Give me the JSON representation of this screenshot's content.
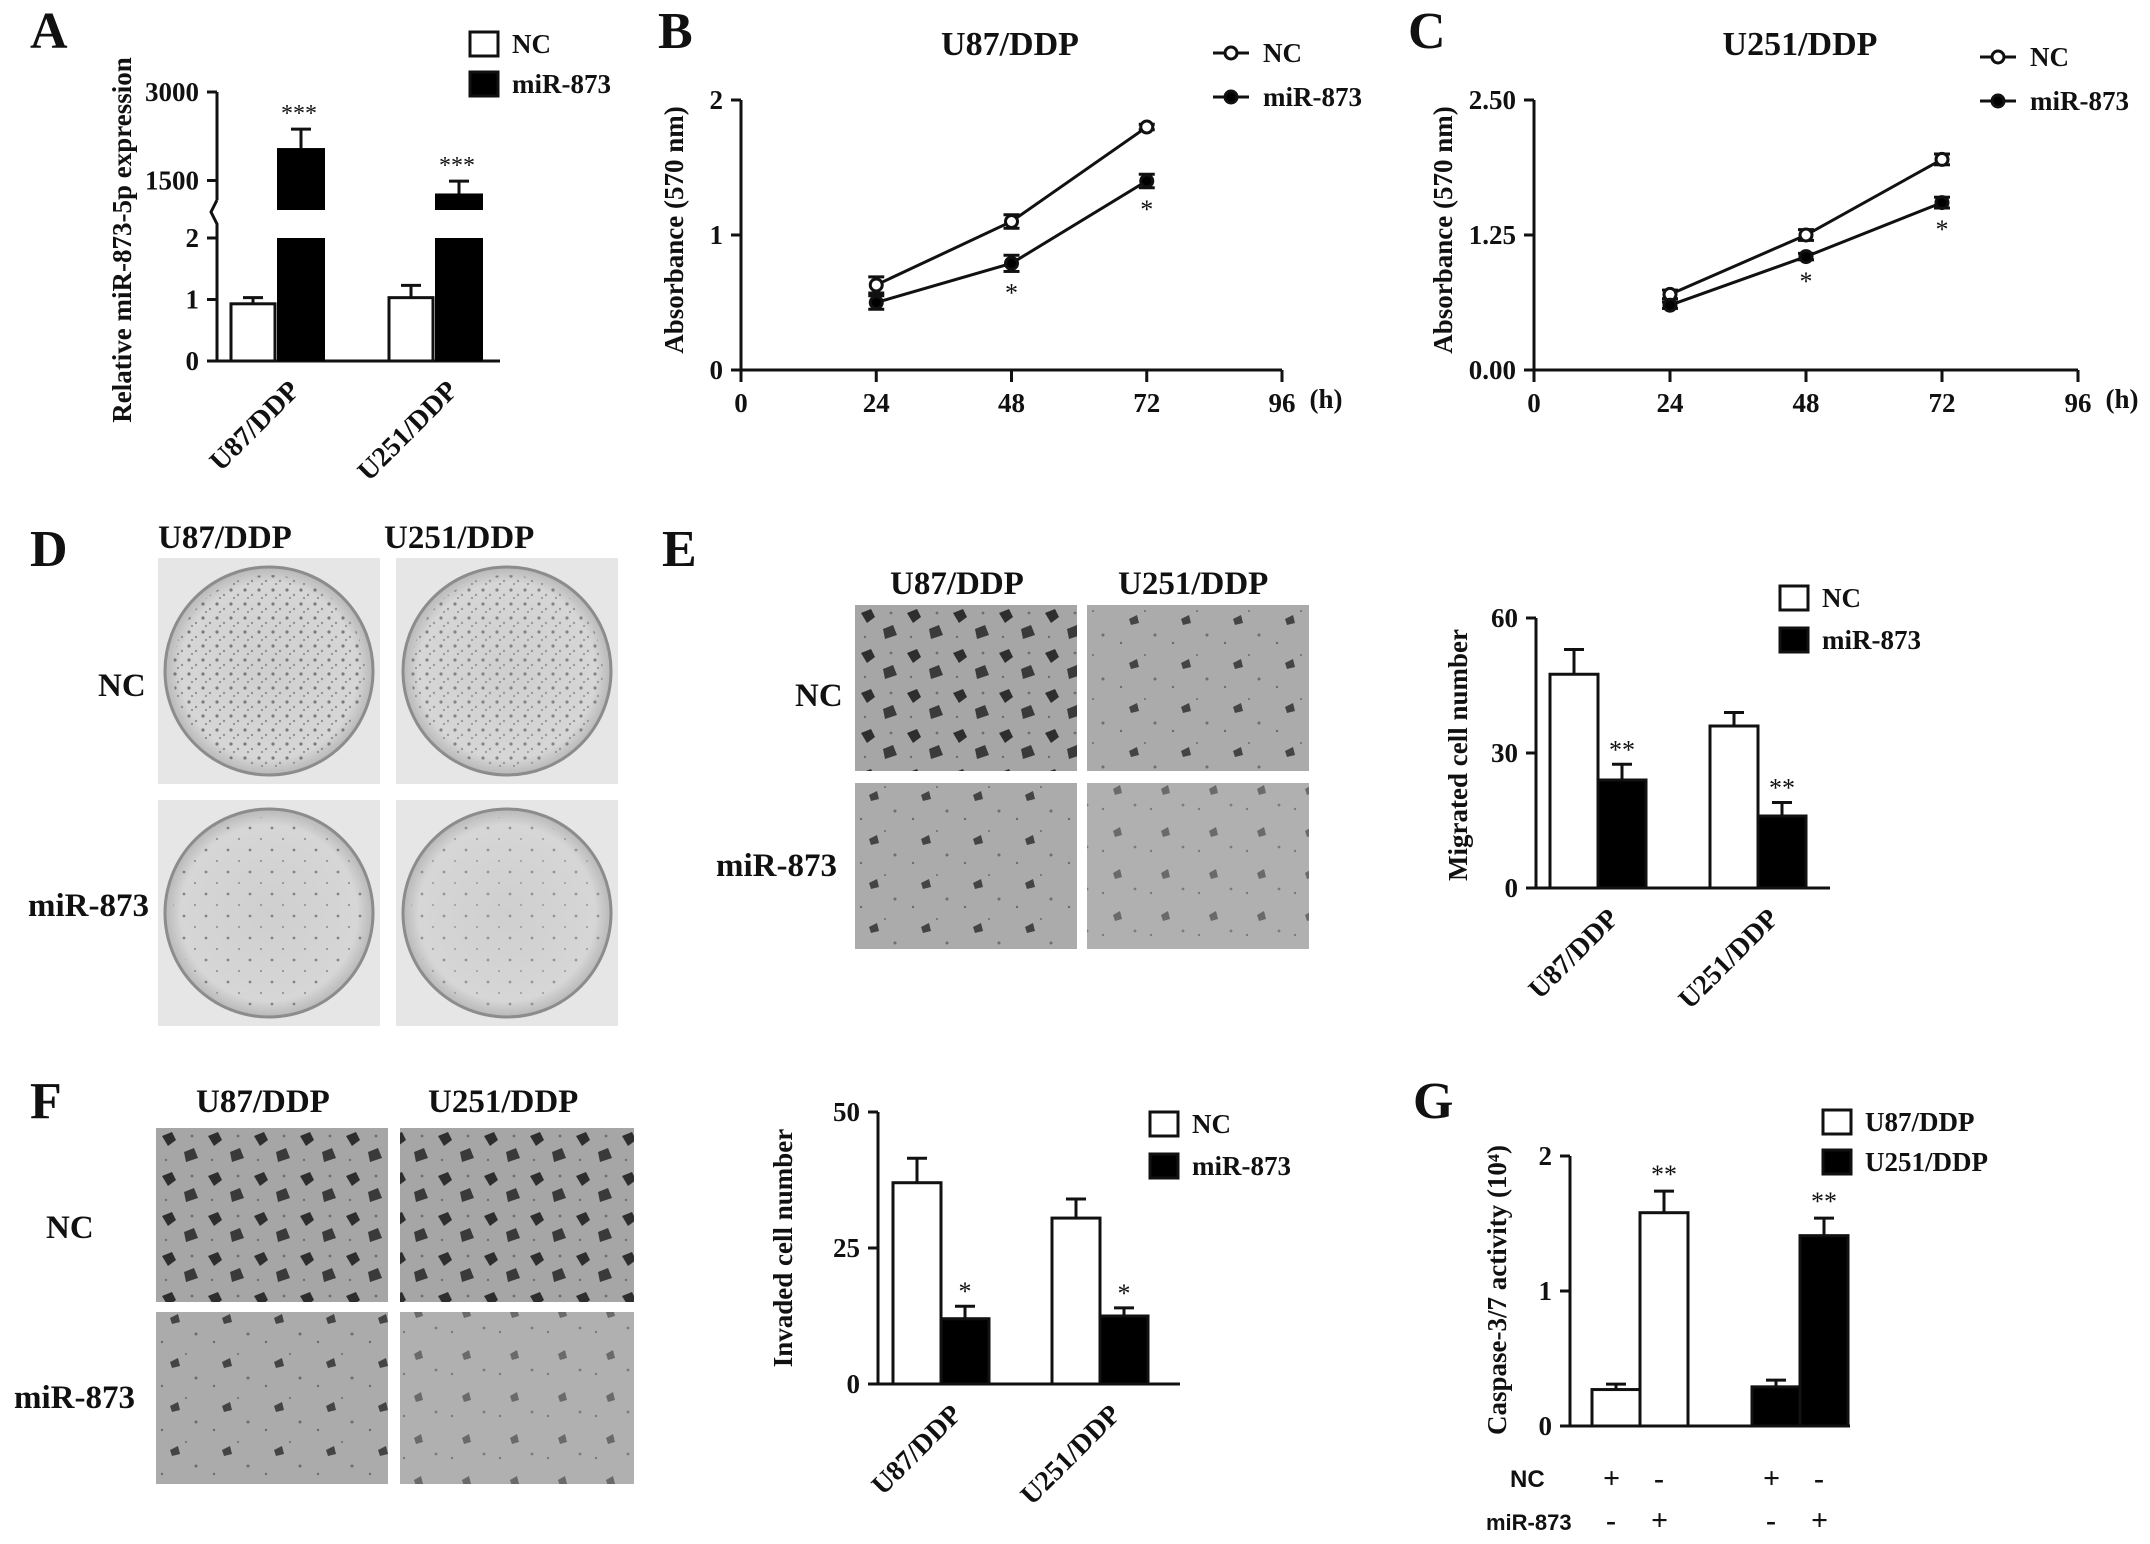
{
  "panels": {
    "A": {
      "letter": "A"
    },
    "B": {
      "letter": "B"
    },
    "C": {
      "letter": "C"
    },
    "D": {
      "letter": "D",
      "col_labels": [
        "U87/DDP",
        "U251/DDP"
      ],
      "row_labels": [
        "NC",
        "miR-873"
      ]
    },
    "E": {
      "letter": "E",
      "col_labels": [
        "U87/DDP",
        "U251/DDP"
      ],
      "row_labels": [
        "NC",
        "miR-873"
      ]
    },
    "F": {
      "letter": "F",
      "col_labels": [
        "U87/DDP",
        "U251/DDP"
      ],
      "row_labels": [
        "NC",
        "miR-873"
      ]
    },
    "G": {
      "letter": "G",
      "row_labels": [
        "NC",
        "miR-873"
      ],
      "signs": [
        [
          "+",
          "-",
          "+",
          "-"
        ],
        [
          "-",
          "+",
          "-",
          "+"
        ]
      ]
    }
  },
  "colors": {
    "open": "#ffffff",
    "filled": "#000000",
    "axis": "#111111",
    "micro_bg": "#a9a9a9",
    "dish_bg": "#d8d8d8"
  },
  "chart_data": [
    {
      "id": "A",
      "type": "bar",
      "ylabel": "Relative  miR-873-5p expression",
      "categories": [
        "U87/DDP",
        "U251/DDP"
      ],
      "broken_axis": true,
      "lower_ticks": [
        "0",
        "1",
        "2"
      ],
      "upper_ticks": [
        "1500",
        "3000"
      ],
      "lower_ylim": [
        0,
        2
      ],
      "upper_ylim": [
        1000,
        3000
      ],
      "series": [
        {
          "name": "NC",
          "values": [
            0.93,
            1.03
          ],
          "errors": [
            0.1,
            0.2
          ]
        },
        {
          "name": "miR-873",
          "values": [
            2050,
            1280
          ],
          "errors": [
            320,
            210
          ]
        }
      ],
      "annotations": [
        "***",
        "***"
      ],
      "legend": "top-right"
    },
    {
      "id": "B",
      "type": "line",
      "title": "U87/DDP",
      "ylabel": "Absorbance (570 nm)",
      "x_unit": "(h)",
      "x_ticks": [
        "0",
        "24",
        "48",
        "72",
        "96"
      ],
      "y_ticks": [
        "0",
        "1",
        "2"
      ],
      "xlim": [
        0,
        96
      ],
      "ylim": [
        0,
        2
      ],
      "x": [
        24,
        48,
        72
      ],
      "series": [
        {
          "name": "NC",
          "marker": "open",
          "values": [
            0.63,
            1.1,
            1.8
          ],
          "errors": [
            0.06,
            0.05,
            0.02
          ]
        },
        {
          "name": "miR-873",
          "marker": "filled",
          "values": [
            0.5,
            0.79,
            1.4
          ],
          "errors": [
            0.05,
            0.06,
            0.05
          ]
        }
      ],
      "annotations": [
        "*",
        "*"
      ],
      "legend": "top-right"
    },
    {
      "id": "C",
      "type": "line",
      "title": "U251/DDP",
      "ylabel": "Absorbance (570 nm)",
      "x_unit": "(h)",
      "x_ticks": [
        "0",
        "24",
        "48",
        "72",
        "96"
      ],
      "y_ticks": [
        "0.00",
        "1.25",
        "2.50"
      ],
      "xlim": [
        0,
        96
      ],
      "ylim": [
        0,
        2.5
      ],
      "x": [
        24,
        48,
        72
      ],
      "series": [
        {
          "name": "NC",
          "marker": "open",
          "values": [
            0.7,
            1.25,
            1.95
          ],
          "errors": [
            0.04,
            0.05,
            0.05
          ]
        },
        {
          "name": "miR-873",
          "marker": "filled",
          "values": [
            0.6,
            1.05,
            1.55
          ],
          "errors": [
            0.03,
            0.03,
            0.05
          ]
        }
      ],
      "annotations": [
        "*",
        "*"
      ],
      "legend": "top-right"
    },
    {
      "id": "E",
      "type": "bar",
      "ylabel": "Migrated cell number",
      "categories": [
        "U87/DDP",
        "U251/DDP"
      ],
      "y_ticks": [
        "0",
        "30",
        "60"
      ],
      "ylim": [
        0,
        60
      ],
      "series": [
        {
          "name": "NC",
          "values": [
            47.5,
            36
          ],
          "errors": [
            5.5,
            3
          ]
        },
        {
          "name": "miR-873",
          "values": [
            24,
            16
          ],
          "errors": [
            3.5,
            3
          ]
        }
      ],
      "annotations": [
        "**",
        "**"
      ],
      "legend": "top-right"
    },
    {
      "id": "F",
      "type": "bar",
      "ylabel": "Invaded cell number",
      "categories": [
        "U87/DDP",
        "U251/DDP"
      ],
      "y_ticks": [
        "0",
        "25",
        "50"
      ],
      "ylim": [
        0,
        50
      ],
      "series": [
        {
          "name": "NC",
          "values": [
            37,
            30.5
          ],
          "errors": [
            4.5,
            3.5
          ]
        },
        {
          "name": "miR-873",
          "values": [
            12,
            12.5
          ],
          "errors": [
            2.3,
            1.5
          ]
        }
      ],
      "annotations": [
        "*",
        "*"
      ],
      "legend": "top-right"
    },
    {
      "id": "G",
      "type": "bar",
      "ylabel": "Caspase-3/7 activity (10⁴)",
      "y_ticks": [
        "0",
        "1",
        "2"
      ],
      "ylim": [
        0,
        2
      ],
      "bars": [
        {
          "series": "U87/DDP",
          "value": 0.27,
          "error": 0.04
        },
        {
          "series": "U87/DDP",
          "value": 1.58,
          "error": 0.16
        },
        {
          "series": "U251/DDP",
          "value": 0.29,
          "error": 0.05
        },
        {
          "series": "U251/DDP",
          "value": 1.41,
          "error": 0.13
        }
      ],
      "series": [
        {
          "name": "U87/DDP"
        },
        {
          "name": "U251/DDP"
        }
      ],
      "annotations": [
        "**",
        "**"
      ],
      "legend": "top-right"
    }
  ]
}
